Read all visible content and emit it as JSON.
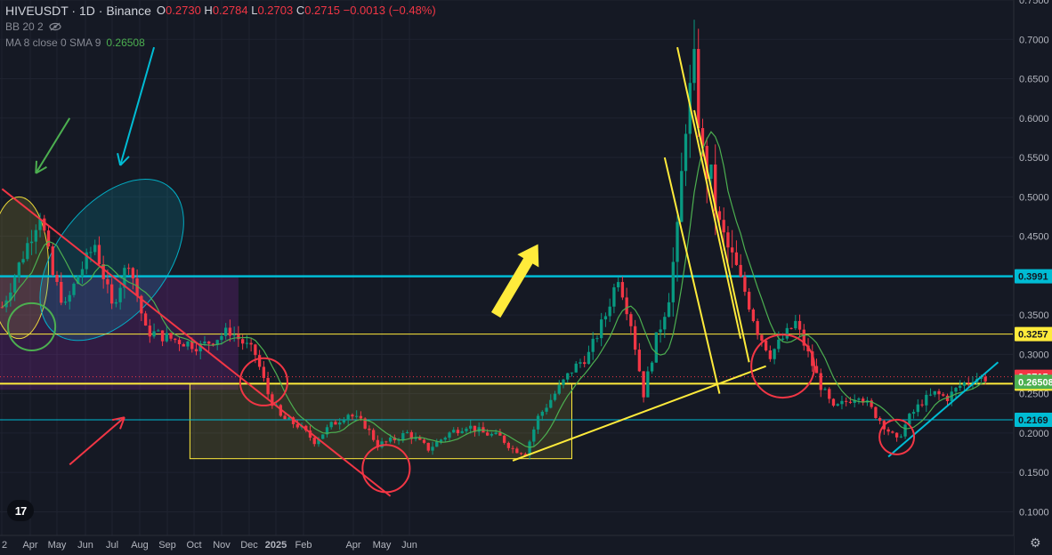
{
  "legend": {
    "symbol": "HIVEUSDT · 1D · Binance",
    "open_label": "O",
    "open": "0.2730",
    "high_label": "H",
    "high": "0.2784",
    "low_label": "L",
    "low": "0.2703",
    "close_label": "C",
    "close": "0.2715",
    "change": "−0.0013 (−0.48%)",
    "bb_label": "BB 20 2",
    "ma_label": "MA 8 close 0 SMA 9",
    "ma_value": "0.26508"
  },
  "colors": {
    "background": "#151924",
    "up": "#089981",
    "down": "#f23645",
    "ma": "#4caf50",
    "cyan": "#00bcd4",
    "yellow": "#ffeb3b",
    "red": "#f23645",
    "green": "#4caf50"
  },
  "icons": {
    "visibility": "eye-slash-icon",
    "settings": "gear-icon",
    "brand": "tradingview-logo-icon"
  },
  "chart_data": {
    "type": "candlestick",
    "y_scale": "linear",
    "ylim": [
      0.07,
      0.75
    ],
    "y_ticks": [
      "0.7500",
      "0.7000",
      "0.6500",
      "0.6000",
      "0.5500",
      "0.5000",
      "0.4500",
      "0.4000",
      "0.3500",
      "0.3000",
      "0.2500",
      "0.2000",
      "0.1500",
      "0.1000"
    ],
    "x_ticks": [
      "2",
      "Apr",
      "May",
      "Jun",
      "Jul",
      "Aug",
      "Sep",
      "Oct",
      "Nov",
      "Dec",
      "2025",
      "Feb",
      "Apr",
      "May",
      "Jun"
    ],
    "x_tick_bold": [
      false,
      false,
      false,
      false,
      false,
      false,
      false,
      false,
      false,
      false,
      true,
      false,
      false,
      false,
      false
    ],
    "price_path": [
      [
        0,
        0.36
      ],
      [
        6,
        0.44
      ],
      [
        9,
        0.48
      ],
      [
        12,
        0.4
      ],
      [
        15,
        0.36
      ],
      [
        18,
        0.4
      ],
      [
        22,
        0.44
      ],
      [
        26,
        0.36
      ],
      [
        30,
        0.42
      ],
      [
        34,
        0.33
      ],
      [
        40,
        0.32
      ],
      [
        47,
        0.31
      ],
      [
        54,
        0.33
      ],
      [
        60,
        0.3
      ],
      [
        63,
        0.25
      ],
      [
        66,
        0.22
      ],
      [
        70,
        0.21
      ],
      [
        74,
        0.19
      ],
      [
        78,
        0.21
      ],
      [
        82,
        0.225
      ],
      [
        86,
        0.21
      ],
      [
        89,
        0.185
      ],
      [
        92,
        0.19
      ],
      [
        96,
        0.2
      ],
      [
        101,
        0.18
      ],
      [
        106,
        0.2
      ],
      [
        110,
        0.21
      ],
      [
        114,
        0.2
      ],
      [
        118,
        0.195
      ],
      [
        121,
        0.18
      ],
      [
        124,
        0.175
      ],
      [
        127,
        0.22
      ],
      [
        131,
        0.25
      ],
      [
        135,
        0.28
      ],
      [
        139,
        0.3
      ],
      [
        143,
        0.35
      ],
      [
        146,
        0.4
      ],
      [
        149,
        0.34
      ],
      [
        152,
        0.25
      ],
      [
        155,
        0.32
      ],
      [
        158,
        0.38
      ],
      [
        160,
        0.45
      ],
      [
        162,
        0.6
      ],
      [
        164,
        0.66
      ],
      [
        166,
        0.55
      ],
      [
        168,
        0.52
      ],
      [
        170,
        0.46
      ],
      [
        173,
        0.42
      ],
      [
        176,
        0.38
      ],
      [
        179,
        0.33
      ],
      [
        182,
        0.3
      ],
      [
        185,
        0.32
      ],
      [
        188,
        0.34
      ],
      [
        191,
        0.3
      ],
      [
        194,
        0.26
      ],
      [
        197,
        0.23
      ],
      [
        200,
        0.24
      ],
      [
        203,
        0.25
      ],
      [
        206,
        0.23
      ],
      [
        209,
        0.21
      ],
      [
        212,
        0.19
      ],
      [
        215,
        0.22
      ],
      [
        218,
        0.24
      ],
      [
        221,
        0.25
      ],
      [
        224,
        0.245
      ],
      [
        227,
        0.26
      ],
      [
        230,
        0.27
      ],
      [
        233,
        0.27
      ]
    ],
    "horizontal_levels": [
      {
        "value": 0.3991,
        "label": "0.3991",
        "color": "#00bcd4",
        "width": 2.5
      },
      {
        "value": 0.3257,
        "label": "0.3257",
        "color": "#ffeb3b",
        "width": 1
      },
      {
        "value": 0.2627,
        "label": "0.2627",
        "color": "#ffeb3b",
        "width": 2
      },
      {
        "value": 0.2169,
        "label": "0.2169",
        "color": "#00bcd4",
        "width": 1
      }
    ],
    "price_labels": [
      {
        "value": 0.2715,
        "label": "0.2715",
        "bg": "#f23645",
        "fg": "#ffffff"
      },
      {
        "value": 0.26508,
        "label": "0.26508",
        "bg": "#4caf50",
        "fg": "#ffffff"
      }
    ],
    "annotations": {
      "trendlines": [
        {
          "x1": 0,
          "y1": 0.51,
          "x2": 92,
          "y2": 0.12,
          "color": "#f23645"
        },
        {
          "x1": 121,
          "y1": 0.165,
          "x2": 181,
          "y2": 0.285,
          "color": "#ffeb3b"
        },
        {
          "x1": 160,
          "y1": 0.69,
          "x2": 175,
          "y2": 0.32,
          "color": "#ffeb3b"
        },
        {
          "x1": 157,
          "y1": 0.55,
          "x2": 170,
          "y2": 0.25,
          "color": "#ffeb3b"
        },
        {
          "x1": 164,
          "y1": 0.61,
          "x2": 177,
          "y2": 0.29,
          "color": "#ffeb3b"
        },
        {
          "x1": 210,
          "y1": 0.17,
          "x2": 236,
          "y2": 0.29,
          "color": "#00bcd4"
        }
      ],
      "arrows": [
        {
          "x1": 16,
          "y1": 0.6,
          "x2": 8,
          "y2": 0.53,
          "color": "#4caf50"
        },
        {
          "x1": 36,
          "y1": 0.69,
          "x2": 28,
          "y2": 0.54,
          "color": "#00bcd4"
        },
        {
          "x1": 16,
          "y1": 0.16,
          "x2": 29,
          "y2": 0.22,
          "color": "#f23645"
        },
        {
          "x1": 117,
          "y1": 0.35,
          "x2": 127,
          "y2": 0.44,
          "color": "#ffeb3b",
          "style": "fat"
        }
      ],
      "circles": [
        {
          "x": 7,
          "y": 0.335,
          "r": 0.03,
          "color": "#4caf50"
        },
        {
          "x": 62,
          "y": 0.265,
          "r": 0.03,
          "color": "#f23645"
        },
        {
          "x": 91,
          "y": 0.155,
          "r": 0.03,
          "color": "#f23645"
        },
        {
          "x": 185,
          "y": 0.285,
          "r": 0.04,
          "color": "#f23645"
        },
        {
          "x": 212,
          "y": 0.195,
          "r": 0.022,
          "color": "#f23645"
        }
      ],
      "ellipses": [
        {
          "x": 4,
          "y": 0.41,
          "rx": 7,
          "ry": 0.09,
          "angle": 0,
          "color": "#ffeb3b"
        },
        {
          "x": 26,
          "y": 0.42,
          "rx": 22,
          "ry": 0.07,
          "angle": -52,
          "color": "#00bcd4"
        }
      ],
      "rectangles": [
        {
          "x1": 0,
          "y1": 0.3991,
          "x2": 56,
          "y2": 0.255,
          "color": "#9c27b0"
        },
        {
          "x1": 45,
          "y1": 0.2627,
          "x2": 135,
          "y2": 0.1675,
          "color": "#ffeb3b"
        }
      ]
    }
  }
}
